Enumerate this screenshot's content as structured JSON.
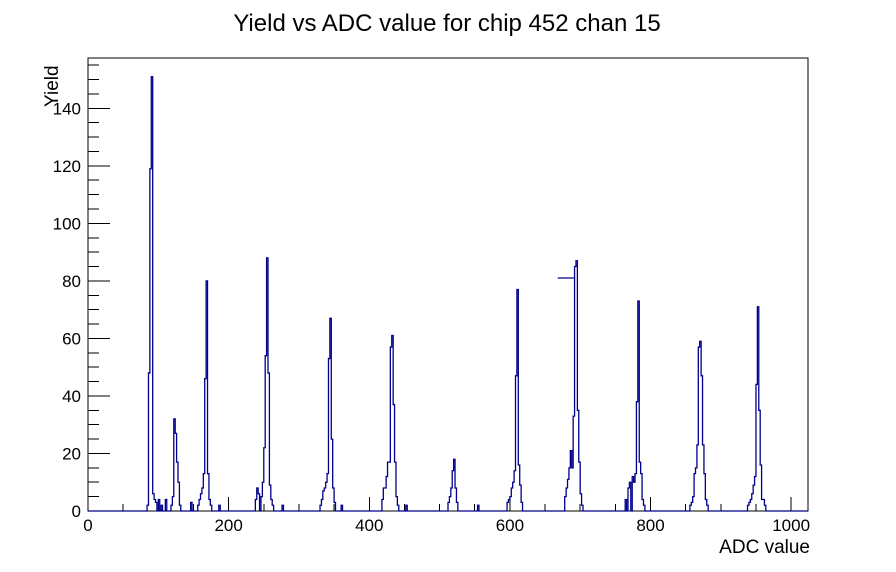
{
  "chart_data": {
    "type": "histogram-line",
    "title": "Yield vs ADC value for chip 452 chan 15",
    "xlabel": "ADC value",
    "ylabel": "Yield",
    "x_range": [
      0,
      1024
    ],
    "y_range": [
      0,
      157.5
    ],
    "x_major_ticks": [
      0,
      200,
      400,
      600,
      800,
      1000
    ],
    "x_minor_step": 50,
    "y_major_ticks": [
      0,
      20,
      40,
      60,
      80,
      100,
      120,
      140
    ],
    "y_minor_step": 5,
    "grid": false,
    "legend": false,
    "line_color": "#00008b",
    "frame_color": "#000000",
    "bin_width": 2,
    "bins": [
      [
        84,
        2
      ],
      [
        86,
        48
      ],
      [
        88,
        119
      ],
      [
        90,
        151
      ],
      [
        92,
        6
      ],
      [
        94,
        4
      ],
      [
        96,
        3
      ],
      [
        100,
        4
      ],
      [
        104,
        2
      ],
      [
        110,
        4
      ],
      [
        118,
        2
      ],
      [
        120,
        5
      ],
      [
        122,
        32
      ],
      [
        124,
        27
      ],
      [
        126,
        17
      ],
      [
        128,
        10
      ],
      [
        130,
        2
      ],
      [
        146,
        3
      ],
      [
        156,
        2
      ],
      [
        158,
        4
      ],
      [
        160,
        6
      ],
      [
        162,
        8
      ],
      [
        164,
        13
      ],
      [
        166,
        46
      ],
      [
        168,
        80
      ],
      [
        170,
        13
      ],
      [
        172,
        4
      ],
      [
        174,
        2
      ],
      [
        186,
        2
      ],
      [
        238,
        4
      ],
      [
        240,
        8
      ],
      [
        242,
        6
      ],
      [
        246,
        5
      ],
      [
        248,
        10
      ],
      [
        250,
        22
      ],
      [
        252,
        54
      ],
      [
        254,
        88
      ],
      [
        256,
        48
      ],
      [
        258,
        9
      ],
      [
        260,
        4
      ],
      [
        262,
        2
      ],
      [
        276,
        2
      ],
      [
        330,
        2
      ],
      [
        332,
        4
      ],
      [
        334,
        7
      ],
      [
        336,
        8
      ],
      [
        338,
        10
      ],
      [
        340,
        13
      ],
      [
        342,
        53
      ],
      [
        344,
        67
      ],
      [
        346,
        25
      ],
      [
        348,
        8
      ],
      [
        350,
        3
      ],
      [
        360,
        2
      ],
      [
        418,
        4
      ],
      [
        420,
        8
      ],
      [
        422,
        8
      ],
      [
        424,
        12
      ],
      [
        426,
        17
      ],
      [
        428,
        17
      ],
      [
        430,
        57
      ],
      [
        432,
        61
      ],
      [
        434,
        37
      ],
      [
        436,
        17
      ],
      [
        438,
        5
      ],
      [
        440,
        2
      ],
      [
        452,
        2
      ],
      [
        512,
        3
      ],
      [
        514,
        5
      ],
      [
        516,
        8
      ],
      [
        518,
        14
      ],
      [
        520,
        18
      ],
      [
        522,
        8
      ],
      [
        524,
        3
      ],
      [
        554,
        2
      ],
      [
        596,
        3
      ],
      [
        598,
        4
      ],
      [
        600,
        5
      ],
      [
        602,
        8
      ],
      [
        604,
        10
      ],
      [
        606,
        14
      ],
      [
        608,
        47
      ],
      [
        610,
        77
      ],
      [
        612,
        16
      ],
      [
        614,
        9
      ],
      [
        616,
        3
      ],
      [
        678,
        5
      ],
      [
        680,
        8
      ],
      [
        682,
        11
      ],
      [
        684,
        15
      ],
      [
        686,
        21
      ],
      [
        688,
        15
      ],
      [
        690,
        33
      ],
      [
        692,
        85
      ],
      [
        694,
        87
      ],
      [
        696,
        35
      ],
      [
        698,
        17
      ],
      [
        700,
        6
      ],
      [
        702,
        2
      ],
      [
        764,
        4
      ],
      [
        768,
        8
      ],
      [
        770,
        10
      ],
      [
        774,
        12
      ],
      [
        776,
        10
      ],
      [
        778,
        13
      ],
      [
        780,
        38
      ],
      [
        782,
        73
      ],
      [
        784,
        17
      ],
      [
        786,
        13
      ],
      [
        788,
        4
      ],
      [
        790,
        2
      ],
      [
        856,
        2
      ],
      [
        858,
        3
      ],
      [
        860,
        5
      ],
      [
        862,
        13
      ],
      [
        864,
        15
      ],
      [
        866,
        23
      ],
      [
        868,
        57
      ],
      [
        870,
        59
      ],
      [
        872,
        47
      ],
      [
        874,
        23
      ],
      [
        876,
        13
      ],
      [
        878,
        4
      ],
      [
        880,
        2
      ],
      [
        938,
        2
      ],
      [
        940,
        3
      ],
      [
        942,
        4
      ],
      [
        944,
        6
      ],
      [
        946,
        9
      ],
      [
        948,
        12
      ],
      [
        950,
        44
      ],
      [
        952,
        71
      ],
      [
        954,
        35
      ],
      [
        956,
        16
      ],
      [
        958,
        4
      ],
      [
        960,
        4
      ],
      [
        962,
        2
      ]
    ],
    "plateau_segment": {
      "x1": 668,
      "x2": 693,
      "y": 81
    }
  }
}
